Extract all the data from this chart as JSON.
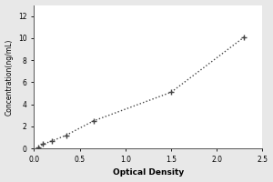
{
  "x_data": [
    0.05,
    0.1,
    0.2,
    0.35,
    0.65,
    1.5,
    2.3
  ],
  "y_data": [
    0.1,
    0.4,
    0.7,
    1.2,
    2.5,
    5.1,
    10.1
  ],
  "xlabel": "Optical Density",
  "ylabel": "Concentration(ng/mL)",
  "xlim": [
    0,
    2.5
  ],
  "ylim": [
    0,
    13
  ],
  "xticks": [
    0,
    0.5,
    1.0,
    1.5,
    2.0,
    2.5
  ],
  "yticks": [
    0,
    2,
    4,
    6,
    8,
    10,
    12
  ],
  "line_color": "#444444",
  "marker_color": "#444444",
  "bg_color": "#ffffff",
  "fig_bg_color": "#e8e8e8",
  "xlabel_fontsize": 6.5,
  "ylabel_fontsize": 5.5,
  "tick_fontsize": 5.5,
  "xlabel_fontweight": "bold",
  "ylabel_fontweight": "normal"
}
